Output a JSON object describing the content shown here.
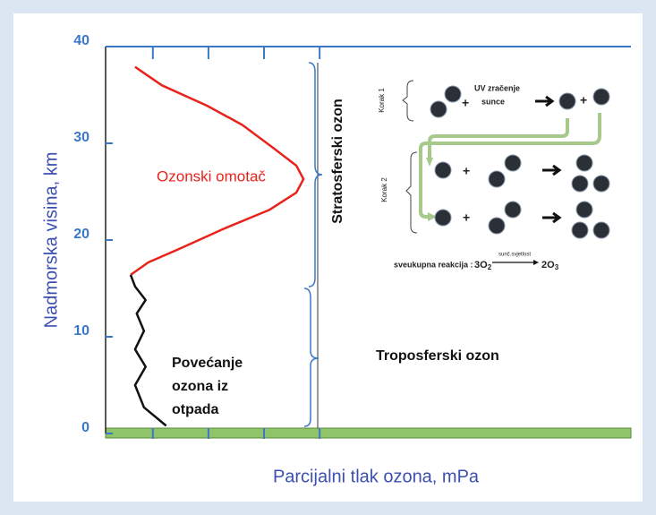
{
  "chart_data": {
    "type": "line",
    "xlabel": "Parcijalni tlak ozona, mPa",
    "ylabel": "Nadmorska visina, km",
    "xlim": [
      -0.85,
      8.6
    ],
    "xticks": [
      0,
      1,
      2,
      3
    ],
    "ylim": [
      0,
      40
    ],
    "yticks": [
      0,
      10,
      20,
      30,
      40
    ],
    "grid": false,
    "series": [
      {
        "color": "#e8231c",
        "x": [
          -0.32,
          0.16,
          0.97,
          1.61,
          2.17,
          2.58,
          2.71,
          2.58,
          2.09,
          1.29,
          0.48,
          -0.08,
          -0.4
        ],
        "values": [
          37.9,
          36.0,
          33.9,
          31.9,
          29.5,
          27.7,
          26.3,
          24.9,
          23.1,
          21.2,
          19.1,
          17.7,
          16.4
        ]
      },
      {
        "color": "#111111",
        "x": [
          -0.4,
          -0.32,
          -0.13,
          -0.29,
          -0.16,
          -0.32,
          -0.13,
          -0.32,
          -0.16,
          0.24
        ],
        "values": [
          16.4,
          15.2,
          13.8,
          12.4,
          10.6,
          8.7,
          6.9,
          5.0,
          2.7,
          0.8
        ]
      }
    ],
    "annotations": {
      "ozone_layer": "Ozonski omotač",
      "waste_1": "Povećanje",
      "waste_2": "ozona iz",
      "waste_3": "otpada",
      "stratosphere": "Stratosferski ozon",
      "troposphere": "Troposferski ozon"
    },
    "inset": {
      "step1": "Korak 1",
      "uv": "UV zračenje",
      "sun": "sunce",
      "step2": "Korak 2",
      "overall": "sveukupna reakcija :",
      "reactant_coef": "3O",
      "reactant_sub": "2",
      "condition": "sunč.svjetlost",
      "product_coef": "2O",
      "product_sub": "3"
    }
  }
}
